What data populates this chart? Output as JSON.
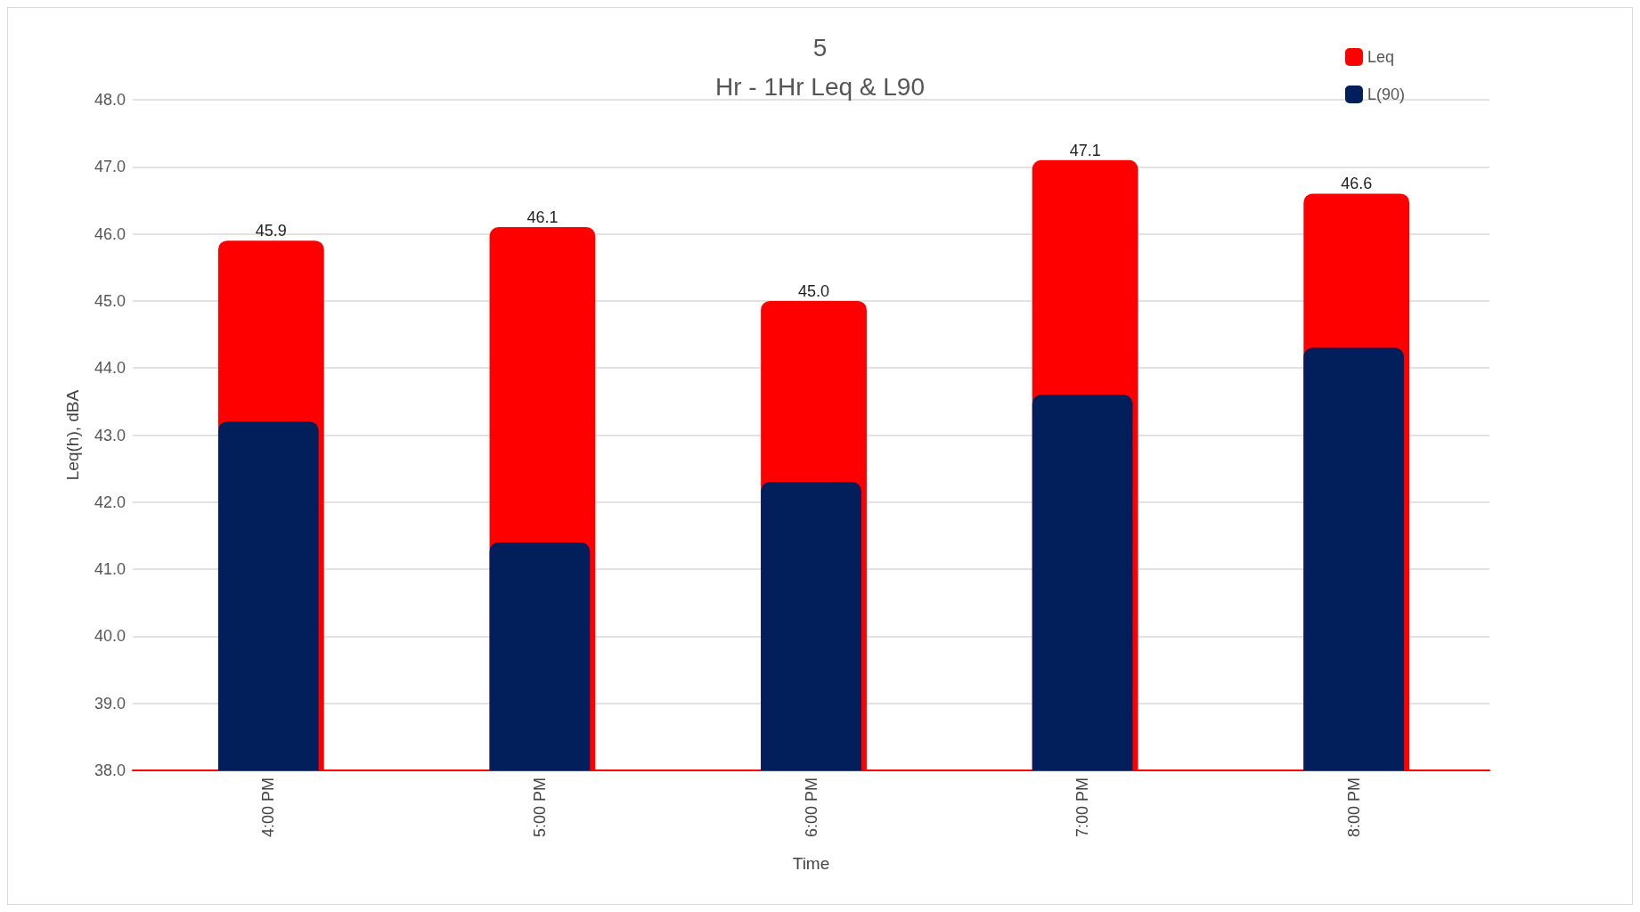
{
  "chart_data": {
    "type": "bar",
    "title": "5",
    "subtitle": "Hr - 1Hr Leq & L90",
    "xlabel": "Time",
    "ylabel": "Leq(h), dBA",
    "categories": [
      "4:00 PM",
      "5:00 PM",
      "6:00 PM",
      "7:00 PM",
      "8:00 PM"
    ],
    "series": [
      {
        "name": "Leq",
        "color": "#ff0000",
        "values": [
          45.9,
          46.1,
          45.0,
          47.1,
          46.6
        ],
        "value_labels": [
          "45.9",
          "46.1",
          "45.0",
          "47.1",
          "46.6"
        ]
      },
      {
        "name": "L(90)",
        "color": "#021f5c",
        "values": [
          43.2,
          41.4,
          42.3,
          43.6,
          44.3
        ]
      }
    ],
    "ylim": [
      38,
      48
    ],
    "yticks": [
      {
        "value": 38,
        "label": "38.0"
      },
      {
        "value": 39,
        "label": "39.0"
      },
      {
        "value": 40,
        "label": "40.0"
      },
      {
        "value": 41,
        "label": "41.0"
      },
      {
        "value": 42,
        "label": "42.0"
      },
      {
        "value": 43,
        "label": "43.0"
      },
      {
        "value": 44,
        "label": "44.0"
      },
      {
        "value": 45,
        "label": "45.0"
      },
      {
        "value": 46,
        "label": "46.0"
      },
      {
        "value": 47,
        "label": "47.0"
      },
      {
        "value": 48,
        "label": "48.0"
      }
    ],
    "grid": "y",
    "legend": "top right"
  }
}
